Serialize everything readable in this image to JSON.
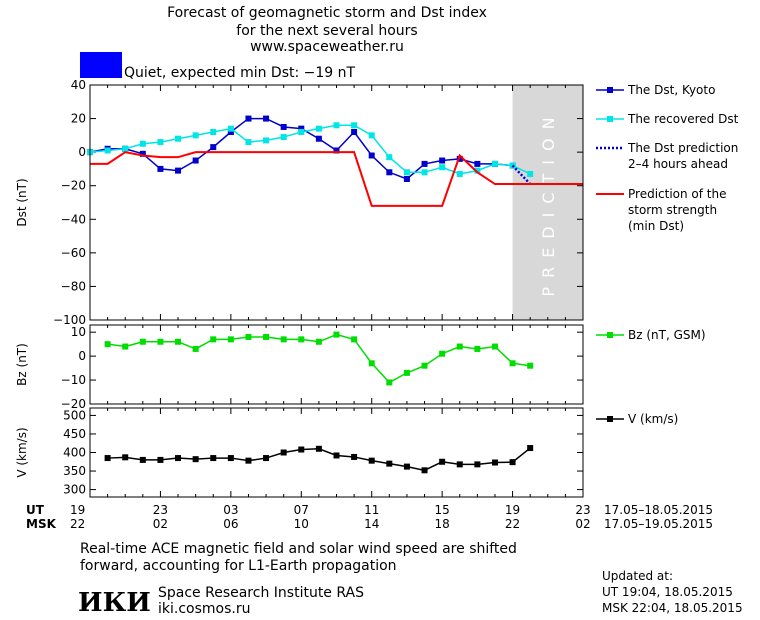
{
  "header": {
    "line1": "Forecast of geomagnetic storm and Dst index",
    "line2": "for the next several hours",
    "line3": "www.spaceweather.ru",
    "status_text": "Quiet, expected min Dst: −19 nT",
    "status_color": "#0000ff"
  },
  "prediction_label": "PREDICTION",
  "time_axis": {
    "ut_label": "UT",
    "msk_label": "MSK",
    "ut_ticks": [
      "19",
      "23",
      "03",
      "07",
      "11",
      "15",
      "19",
      "23"
    ],
    "msk_ticks": [
      "22",
      "02",
      "06",
      "10",
      "14",
      "18",
      "22",
      "02"
    ],
    "ut_range": "17.05–18.05.2015",
    "msk_range": "17.05–19.05.2015"
  },
  "footer": {
    "note_line1": "Real-time ACE magnetic field and solar wind speed are shifted",
    "note_line2": "forward, accounting for L1-Earth propagation",
    "logo_text": "ИКИ",
    "institute": "Space Research Institute RAS",
    "website": "iki.cosmos.ru",
    "updated_label": "Updated at:",
    "updated_ut": "UT   19:04, 18.05.2015",
    "updated_msk": "MSK 22:04, 18.05.2015"
  },
  "chart_data": [
    {
      "type": "line",
      "name": "dst-panel",
      "ylabel": "Dst (nT)",
      "ylim": [
        -100,
        40
      ],
      "yticks": [
        40,
        20,
        0,
        -20,
        -40,
        -60,
        -80,
        -100
      ],
      "xlim": [
        0,
        28
      ],
      "prediction_start": 24,
      "series": [
        {
          "name": "The Dst, Kyoto",
          "color": "#0000cc",
          "marker": "square",
          "style": "solid",
          "x": [
            0,
            1,
            2,
            3,
            4,
            5,
            6,
            7,
            8,
            9,
            10,
            11,
            12,
            13,
            14,
            15,
            16,
            17,
            18,
            19,
            20,
            21,
            22,
            23,
            24
          ],
          "y": [
            0,
            2,
            2,
            -1,
            -10,
            -11,
            -5,
            3,
            12,
            20,
            20,
            15,
            14,
            8,
            1,
            12,
            -2,
            -12,
            -16,
            -7,
            -5,
            -4,
            -7,
            -7,
            -8
          ]
        },
        {
          "name": "The recovered Dst",
          "color": "#00e5e5",
          "marker": "square",
          "style": "solid",
          "x": [
            0,
            1,
            2,
            3,
            4,
            5,
            6,
            7,
            8,
            9,
            10,
            11,
            12,
            13,
            14,
            15,
            16,
            17,
            18,
            19,
            20,
            21,
            22,
            23,
            24,
            25
          ],
          "y": [
            0,
            1,
            2,
            5,
            6,
            8,
            10,
            12,
            14,
            6,
            7,
            9,
            12,
            14,
            16,
            16,
            10,
            -3,
            -12,
            -12,
            -9,
            -13,
            -11,
            -7,
            -8,
            -13
          ]
        },
        {
          "name": "The Dst prediction\n2–4 hours ahead",
          "color": "#0000cc",
          "marker": "none",
          "style": "dotted",
          "x": [
            24,
            25
          ],
          "y": [
            -8,
            -19
          ]
        },
        {
          "name": "Prediction of the\nstorm strength\n(min Dst)",
          "color": "#ff0000",
          "marker": "none",
          "style": "step",
          "x": [
            0,
            1,
            2,
            3,
            4,
            5,
            6,
            7,
            15,
            16,
            20,
            21,
            22,
            23,
            24,
            28
          ],
          "y": [
            -7,
            -7,
            0,
            -2,
            -3,
            -3,
            0,
            0,
            0,
            -32,
            -32,
            -2,
            -12,
            -19,
            -19,
            -19
          ]
        }
      ]
    },
    {
      "type": "line",
      "name": "bz-panel",
      "ylabel": "Bz (nT)",
      "ylim": [
        -20,
        13
      ],
      "yticks": [
        10,
        0,
        -10,
        -20
      ],
      "xlim": [
        0,
        28
      ],
      "series": [
        {
          "name": "Bz (nT, GSM)",
          "color": "#00dd00",
          "marker": "square",
          "style": "solid",
          "x": [
            1,
            2,
            3,
            4,
            5,
            6,
            7,
            8,
            9,
            10,
            11,
            12,
            13,
            14,
            15,
            16,
            17,
            18,
            19,
            20,
            21,
            22,
            23,
            24,
            25
          ],
          "y": [
            5,
            4,
            6,
            6,
            6,
            3,
            7,
            7,
            8,
            8,
            7,
            7,
            6,
            9,
            7,
            -3,
            -11,
            -7,
            -4,
            1,
            4,
            3,
            4,
            -3,
            -4
          ]
        }
      ]
    },
    {
      "type": "line",
      "name": "v-panel",
      "ylabel": "V (km/s)",
      "ylim": [
        280,
        520
      ],
      "yticks": [
        500,
        450,
        400,
        350,
        300
      ],
      "xlim": [
        0,
        28
      ],
      "series": [
        {
          "name": "V (km/s)",
          "color": "#000000",
          "marker": "square",
          "style": "solid",
          "x": [
            1,
            2,
            3,
            4,
            5,
            6,
            7,
            8,
            9,
            10,
            11,
            12,
            13,
            14,
            15,
            16,
            17,
            18,
            19,
            20,
            21,
            22,
            23,
            24,
            25
          ],
          "y": [
            385,
            387,
            380,
            380,
            385,
            382,
            385,
            385,
            378,
            385,
            400,
            408,
            410,
            392,
            388,
            378,
            370,
            362,
            352,
            375,
            368,
            368,
            373,
            374,
            412
          ]
        }
      ]
    }
  ]
}
